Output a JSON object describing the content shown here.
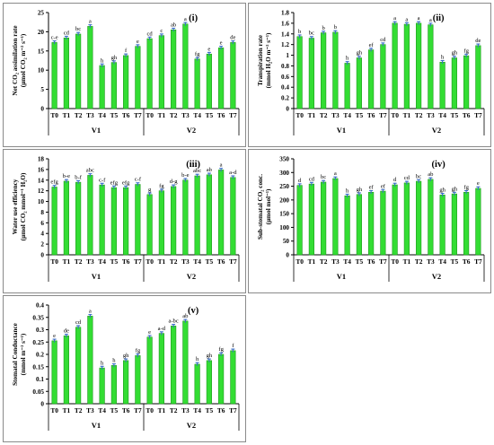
{
  "panels": [
    {
      "title": "(i)",
      "ylabel_lines": [
        "Net CO₂ assimilation rate",
        "(µmol CO₂ m⁻² s⁻¹)"
      ],
      "ylim": [
        0,
        25
      ],
      "yticks": [
        "0",
        "5",
        "10",
        "15",
        "20",
        "25"
      ],
      "categories": [
        "T0",
        "T1",
        "T2",
        "T3",
        "T4",
        "T5",
        "T6",
        "T7",
        "T0",
        "T1",
        "T2",
        "T3",
        "T4",
        "T5",
        "T6",
        "T7"
      ],
      "groups": [
        "V1",
        "V2"
      ],
      "values": [
        17.2,
        18.4,
        19.4,
        21.4,
        11.2,
        12.0,
        13.8,
        16.2,
        18.2,
        19.0,
        20.5,
        22.0,
        12.9,
        14.2,
        15.8,
        17.2
      ],
      "labels": [
        "c-e",
        "cd",
        "bc",
        "a",
        "h",
        "gh",
        "f",
        "e",
        "cd",
        "c",
        "ab",
        "a",
        "fg",
        "e",
        "e",
        "de"
      ]
    },
    {
      "title": "(ii)",
      "ylabel_lines": [
        "Transpiration rate",
        "(mmol H₂O m⁻² s⁻¹)"
      ],
      "ylim": [
        0,
        1.8
      ],
      "yticks": [
        "0",
        "0.2",
        "0.4",
        "0.6",
        "0.8",
        "1",
        "1.2",
        "1.4",
        "1.6",
        "1.8"
      ],
      "categories": [
        "T0",
        "T1",
        "T2",
        "T3",
        "T4",
        "T5",
        "T6",
        "T7",
        "T0",
        "T1",
        "T2",
        "T3",
        "T4",
        "T5",
        "T6",
        "T7"
      ],
      "groups": [
        "V1",
        "V2"
      ],
      "values": [
        1.35,
        1.32,
        1.42,
        1.43,
        0.85,
        0.95,
        1.1,
        1.2,
        1.6,
        1.58,
        1.6,
        1.57,
        0.87,
        0.95,
        0.99,
        1.18
      ],
      "labels": [
        "b",
        "bc",
        "b",
        "b",
        "h",
        "gh",
        "ef",
        "cd",
        "a",
        "a",
        "a",
        "a",
        "h",
        "gh",
        "fg",
        "de"
      ]
    },
    {
      "title": "(iii)",
      "ylabel_lines": [
        "Water use efficiency",
        "(µmol CO₂ mmol⁻¹ H₂O)"
      ],
      "ylim": [
        0,
        18
      ],
      "yticks": [
        "0",
        "2",
        "4",
        "6",
        "8",
        "10",
        "12",
        "14",
        "16",
        "18"
      ],
      "categories": [
        "T0",
        "T1",
        "T2",
        "T3",
        "T4",
        "T5",
        "T6",
        "T7",
        "T0",
        "T1",
        "T2",
        "T3",
        "T4",
        "T5",
        "T6",
        "T7"
      ],
      "groups": [
        "V1",
        "V2"
      ],
      "values": [
        12.7,
        13.8,
        13.6,
        14.9,
        13.1,
        12.6,
        12.6,
        13.2,
        11.3,
        12.0,
        12.8,
        14.0,
        14.8,
        15.0,
        15.9,
        14.5
      ],
      "labels": [
        "efg",
        "b-e",
        "b-f",
        "abc",
        "c-f",
        "efg",
        "efg",
        "c-f",
        "g",
        "fg",
        "d-g",
        "b-e",
        "abc",
        "ab",
        "a",
        "a-d"
      ]
    },
    {
      "title": "(iv)",
      "ylabel_lines": [
        "Sub-stomatal CO₂ conc.",
        "(µmol mol⁻¹)"
      ],
      "ylim": [
        0,
        350
      ],
      "yticks": [
        "0",
        "50",
        "100",
        "150",
        "200",
        "250",
        "300",
        "350"
      ],
      "categories": [
        "T0",
        "T1",
        "T2",
        "T3",
        "T4",
        "T5",
        "T6",
        "T7",
        "T0",
        "T1",
        "T2",
        "T3",
        "T4",
        "T5",
        "T6",
        "T7"
      ],
      "groups": [
        "V1",
        "V2"
      ],
      "values": [
        253,
        258,
        265,
        278,
        215,
        220,
        228,
        232,
        255,
        262,
        268,
        275,
        218,
        222,
        228,
        242
      ],
      "labels": [
        "d",
        "cd",
        "bc",
        "a",
        "h",
        "gh",
        "ef",
        "ef",
        "d",
        "cd",
        "bc",
        "ab",
        "gh",
        "gh",
        "fg",
        "e"
      ]
    },
    {
      "title": "(v)",
      "ylabel_lines": [
        "Stomatal Conductance",
        "(mmol m⁻² s⁻¹)"
      ],
      "ylim": [
        0,
        0.4
      ],
      "yticks": [
        "0",
        "0.05",
        "0.1",
        "0.15",
        "0.2",
        "0.25",
        "0.3",
        "0.35",
        "0.4"
      ],
      "categories": [
        "T0",
        "T1",
        "T2",
        "T3",
        "T4",
        "T5",
        "T6",
        "T7",
        "T0",
        "T1",
        "T2",
        "T3",
        "T4",
        "T5",
        "T6",
        "T7"
      ],
      "groups": [
        "V1",
        "V2"
      ],
      "values": [
        0.255,
        0.275,
        0.31,
        0.355,
        0.145,
        0.155,
        0.175,
        0.195,
        0.27,
        0.285,
        0.315,
        0.335,
        0.16,
        0.175,
        0.2,
        0.215
      ],
      "labels": [
        "e",
        "de",
        "cd",
        "a",
        "h",
        "h",
        "gh",
        "fg",
        "e",
        "a-d",
        "a-bc",
        "ab",
        "h",
        "gh",
        "fg",
        "f"
      ]
    }
  ],
  "colors": {
    "bar": "#33dd33",
    "bar_edge": "#1a9a1a",
    "error": "#3a6ec8",
    "axis": "#000000"
  }
}
